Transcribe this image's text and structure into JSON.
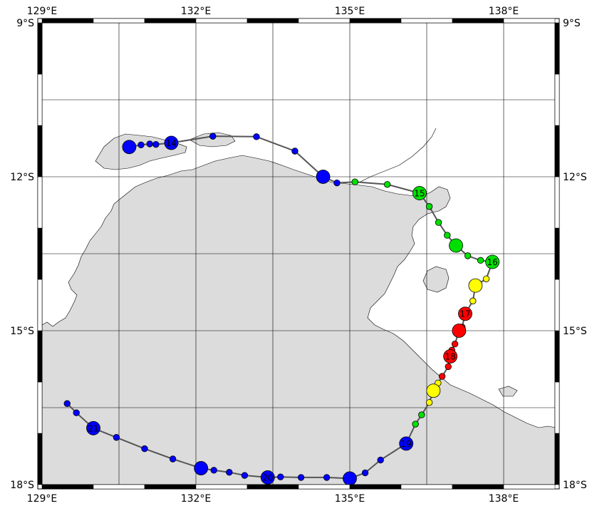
{
  "map": {
    "lon_range": [
      129,
      139
    ],
    "lat_range": [
      -18,
      -9
    ],
    "land_color": "#dcdcdc",
    "grid": true,
    "ticks": {
      "top": [
        {
          "lon": 129,
          "label": "129°E"
        },
        {
          "lon": 132,
          "label": "132°E"
        },
        {
          "lon": 135,
          "label": "135°E"
        },
        {
          "lon": 138,
          "label": "138°E"
        }
      ],
      "bottom": [
        {
          "lon": 129,
          "label": "129°E"
        },
        {
          "lon": 132,
          "label": "132°E"
        },
        {
          "lon": 135,
          "label": "135°E"
        },
        {
          "lon": 138,
          "label": "138°E"
        }
      ],
      "left": [
        {
          "lat": -9,
          "label": "9°S"
        },
        {
          "lat": -12,
          "label": "12°S"
        },
        {
          "lat": -15,
          "label": "15°S"
        },
        {
          "lat": -18,
          "label": "18°S"
        }
      ],
      "right": [
        {
          "lat": -9,
          "label": "9°S"
        },
        {
          "lat": -12,
          "label": "12°S"
        },
        {
          "lat": -15,
          "label": "15°S"
        },
        {
          "lat": -18,
          "label": "18°S"
        }
      ]
    }
  },
  "track": {
    "line_color": "#555555",
    "category_colors": {
      "blue": "#0000ff",
      "green": "#00e000",
      "yellow": "#ffff00",
      "red": "#ff0000"
    },
    "points": [
      {
        "lon": 130.7,
        "lat": -11.42,
        "cat": "blue",
        "size": "large"
      },
      {
        "lon": 130.93,
        "lat": -11.38,
        "cat": "blue",
        "size": "small"
      },
      {
        "lon": 131.1,
        "lat": -11.36,
        "cat": "blue",
        "size": "small"
      },
      {
        "lon": 131.22,
        "lat": -11.37,
        "cat": "blue",
        "size": "small"
      },
      {
        "lon": 131.52,
        "lat": -11.34,
        "cat": "blue",
        "size": "large",
        "label": "14"
      },
      {
        "lon": 132.33,
        "lat": -11.21,
        "cat": "blue",
        "size": "small"
      },
      {
        "lon": 133.18,
        "lat": -11.22,
        "cat": "blue",
        "size": "small"
      },
      {
        "lon": 133.93,
        "lat": -11.5,
        "cat": "blue",
        "size": "small"
      },
      {
        "lon": 134.48,
        "lat": -12.0,
        "cat": "blue",
        "size": "large"
      },
      {
        "lon": 134.75,
        "lat": -12.12,
        "cat": "blue",
        "size": "small"
      },
      {
        "lon": 135.1,
        "lat": -12.1,
        "cat": "green",
        "size": "small"
      },
      {
        "lon": 135.73,
        "lat": -12.15,
        "cat": "green",
        "size": "small"
      },
      {
        "lon": 136.36,
        "lat": -12.32,
        "cat": "green",
        "size": "large",
        "label": "15"
      },
      {
        "lon": 136.55,
        "lat": -12.58,
        "cat": "green",
        "size": "small"
      },
      {
        "lon": 136.73,
        "lat": -12.89,
        "cat": "green",
        "size": "small"
      },
      {
        "lon": 136.9,
        "lat": -13.14,
        "cat": "green",
        "size": "small"
      },
      {
        "lon": 137.07,
        "lat": -13.34,
        "cat": "green",
        "size": "large"
      },
      {
        "lon": 137.3,
        "lat": -13.54,
        "cat": "green",
        "size": "small"
      },
      {
        "lon": 137.55,
        "lat": -13.63,
        "cat": "green",
        "size": "small"
      },
      {
        "lon": 137.78,
        "lat": -13.66,
        "cat": "green",
        "size": "large",
        "label": "16"
      },
      {
        "lon": 137.66,
        "lat": -13.99,
        "cat": "yellow",
        "size": "small"
      },
      {
        "lon": 137.45,
        "lat": -14.12,
        "cat": "yellow",
        "size": "large"
      },
      {
        "lon": 137.4,
        "lat": -14.42,
        "cat": "yellow",
        "size": "small"
      },
      {
        "lon": 137.25,
        "lat": -14.67,
        "cat": "red",
        "size": "large",
        "label": "17"
      },
      {
        "lon": 137.19,
        "lat": -14.93,
        "cat": "red",
        "size": "small"
      },
      {
        "lon": 137.13,
        "lat": -15.0,
        "cat": "red",
        "size": "large"
      },
      {
        "lon": 137.05,
        "lat": -15.26,
        "cat": "red",
        "size": "small"
      },
      {
        "lon": 136.99,
        "lat": -15.38,
        "cat": "red",
        "size": "small"
      },
      {
        "lon": 136.96,
        "lat": -15.5,
        "cat": "red",
        "size": "large",
        "label": "18"
      },
      {
        "lon": 136.92,
        "lat": -15.7,
        "cat": "red",
        "size": "small"
      },
      {
        "lon": 136.8,
        "lat": -15.89,
        "cat": "red",
        "size": "small"
      },
      {
        "lon": 136.72,
        "lat": -16.02,
        "cat": "yellow",
        "size": "small"
      },
      {
        "lon": 136.63,
        "lat": -16.17,
        "cat": "yellow",
        "size": "large"
      },
      {
        "lon": 136.55,
        "lat": -16.4,
        "cat": "yellow",
        "size": "small"
      },
      {
        "lon": 136.4,
        "lat": -16.64,
        "cat": "green",
        "size": "small"
      },
      {
        "lon": 136.28,
        "lat": -16.82,
        "cat": "green",
        "size": "small"
      },
      {
        "lon": 136.1,
        "lat": -17.2,
        "cat": "blue",
        "size": "large",
        "label": "19"
      },
      {
        "lon": 135.6,
        "lat": -17.52,
        "cat": "blue",
        "size": "small"
      },
      {
        "lon": 135.3,
        "lat": -17.77,
        "cat": "blue",
        "size": "small"
      },
      {
        "lon": 135.0,
        "lat": -17.88,
        "cat": "blue",
        "size": "large"
      },
      {
        "lon": 134.55,
        "lat": -17.86,
        "cat": "blue",
        "size": "small"
      },
      {
        "lon": 134.05,
        "lat": -17.86,
        "cat": "blue",
        "size": "small"
      },
      {
        "lon": 133.65,
        "lat": -17.85,
        "cat": "blue",
        "size": "small"
      },
      {
        "lon": 133.4,
        "lat": -17.86,
        "cat": "blue",
        "size": "large",
        "label": "20"
      },
      {
        "lon": 132.95,
        "lat": -17.82,
        "cat": "blue",
        "size": "small"
      },
      {
        "lon": 132.65,
        "lat": -17.76,
        "cat": "blue",
        "size": "small"
      },
      {
        "lon": 132.35,
        "lat": -17.72,
        "cat": "blue",
        "size": "small"
      },
      {
        "lon": 132.1,
        "lat": -17.68,
        "cat": "blue",
        "size": "large"
      },
      {
        "lon": 131.55,
        "lat": -17.5,
        "cat": "blue",
        "size": "small"
      },
      {
        "lon": 131.0,
        "lat": -17.3,
        "cat": "blue",
        "size": "small"
      },
      {
        "lon": 130.45,
        "lat": -17.08,
        "cat": "blue",
        "size": "small"
      },
      {
        "lon": 130.0,
        "lat": -16.9,
        "cat": "blue",
        "size": "large",
        "label": "21"
      },
      {
        "lon": 129.67,
        "lat": -16.6,
        "cat": "blue",
        "size": "small"
      },
      {
        "lon": 129.49,
        "lat": -16.42,
        "cat": "blue",
        "size": "small"
      }
    ]
  }
}
